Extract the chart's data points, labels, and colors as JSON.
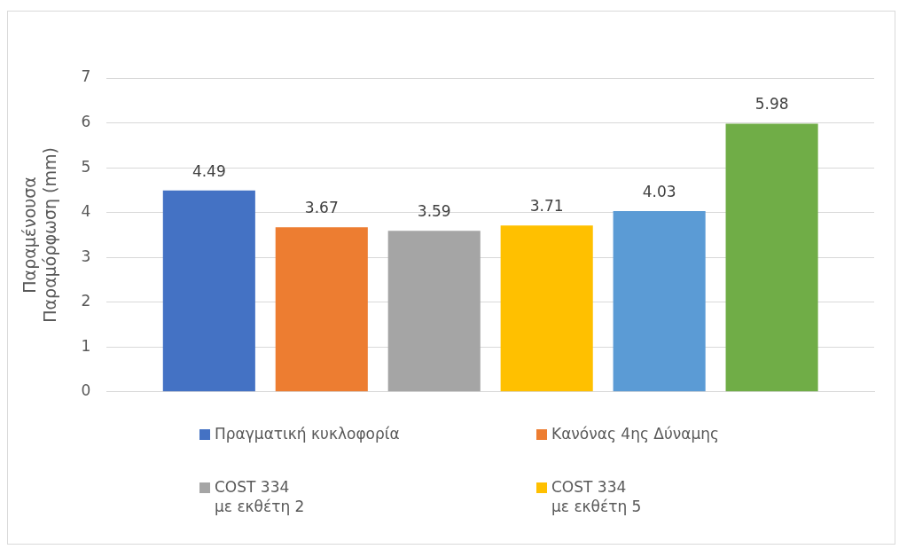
{
  "chart_data": {
    "type": "bar",
    "ylabel": "Παραμένουσα\nΠαραμόρφωση (mm)",
    "categories": [
      null
    ],
    "series": [
      {
        "name": "Πραγματική κυκλοφορία",
        "color": "#4472c4",
        "values": [
          4.49
        ]
      },
      {
        "name": "Κανόνας 4ης Δύναμης",
        "color": "#ed7d31",
        "values": [
          3.67
        ]
      },
      {
        "name": "COST 334\n με εκθέτη 2",
        "color": "#a5a5a5",
        "values": [
          3.59
        ]
      },
      {
        "name": "COST 334\n με εκθέτη 5",
        "color": "#ffc000",
        "values": [
          3.71
        ]
      },
      {
        "color": "#5b9bd5",
        "values": [
          4.03
        ]
      },
      {
        "color": "#70ad47",
        "values": [
          5.98
        ]
      }
    ],
    "ylim": [
      0,
      7
    ],
    "yticks": [
      0,
      1,
      2,
      3,
      4,
      5,
      6,
      7
    ],
    "grid": "y",
    "legend": "bottom",
    "data_labels": true
  }
}
